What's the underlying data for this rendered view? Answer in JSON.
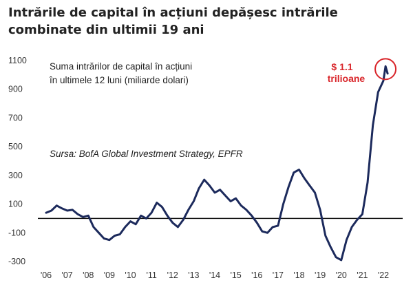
{
  "title": "Intrările de capital în acțiuni depășesc intrările combinate din ultimii 19 ani",
  "chart_data": {
    "type": "line",
    "title": "Intrările de capital în acțiuni depășesc intrările combinate din ultimii 19 ani",
    "description_lines": [
      "Suma intrărilor de capital în acțiuni",
      "în ultimele 12 luni (miliarde dolari)"
    ],
    "source": "Sursa: BofA Global Investment Strategy, EPFR",
    "annotation": [
      "$ 1.1",
      "trilioane"
    ],
    "ylim": [
      -300,
      1100
    ],
    "yticks": [
      1100,
      900,
      700,
      500,
      300,
      100,
      -100,
      -300
    ],
    "x_tick_labels": [
      "'06",
      "'07",
      "'08",
      "'09",
      "'10",
      "'11",
      "'12",
      "'13",
      "'14",
      "'15",
      "'16",
      "'17",
      "'18",
      "'19",
      "'20",
      "'21",
      "'22"
    ],
    "reference_line_y": 0,
    "line_color": "#1c2a5c",
    "annotation_color": "#d9262b",
    "series": [
      {
        "x": [
          2006.0,
          2006.25,
          2006.5,
          2006.75,
          2007.0,
          2007.25,
          2007.5,
          2007.75,
          2008.0,
          2008.25,
          2008.5,
          2008.75,
          2009.0,
          2009.25,
          2009.5,
          2009.75,
          2010.0,
          2010.25,
          2010.5,
          2010.75,
          2011.0,
          2011.25,
          2011.5,
          2011.75,
          2012.0,
          2012.25,
          2012.5,
          2012.75,
          2013.0,
          2013.25,
          2013.5,
          2013.75,
          2014.0,
          2014.25,
          2014.5,
          2014.75,
          2015.0,
          2015.25,
          2015.5,
          2015.75,
          2016.0,
          2016.25,
          2016.5,
          2016.75,
          2017.0,
          2017.25,
          2017.5,
          2017.75,
          2018.0,
          2018.25,
          2018.5,
          2018.75,
          2019.0,
          2019.25,
          2019.5,
          2019.75,
          2020.0,
          2020.25,
          2020.5,
          2020.75,
          2021.0,
          2021.25,
          2021.5,
          2021.75,
          2022.0,
          2022.1,
          2022.2
        ],
        "y": [
          40,
          55,
          90,
          70,
          55,
          60,
          30,
          10,
          20,
          -60,
          -100,
          -140,
          -150,
          -120,
          -110,
          -60,
          -20,
          -40,
          20,
          0,
          40,
          110,
          80,
          20,
          -30,
          -60,
          -10,
          60,
          120,
          210,
          270,
          230,
          180,
          200,
          160,
          120,
          140,
          90,
          60,
          20,
          -30,
          -90,
          -100,
          -60,
          -50,
          100,
          220,
          320,
          340,
          280,
          230,
          180,
          60,
          -120,
          -200,
          -270,
          -290,
          -150,
          -60,
          -10,
          30,
          250,
          650,
          880,
          960,
          1060,
          1010
        ]
      }
    ]
  }
}
